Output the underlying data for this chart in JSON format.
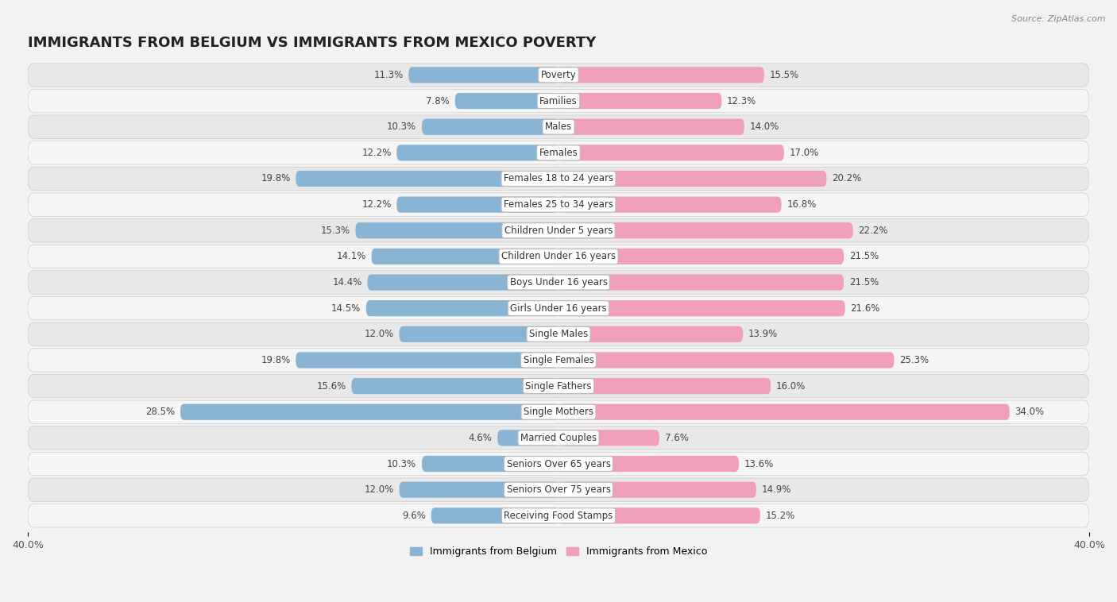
{
  "title": "IMMIGRANTS FROM BELGIUM VS IMMIGRANTS FROM MEXICO POVERTY",
  "source": "Source: ZipAtlas.com",
  "categories": [
    "Poverty",
    "Families",
    "Males",
    "Females",
    "Females 18 to 24 years",
    "Females 25 to 34 years",
    "Children Under 5 years",
    "Children Under 16 years",
    "Boys Under 16 years",
    "Girls Under 16 years",
    "Single Males",
    "Single Females",
    "Single Fathers",
    "Single Mothers",
    "Married Couples",
    "Seniors Over 65 years",
    "Seniors Over 75 years",
    "Receiving Food Stamps"
  ],
  "belgium_values": [
    11.3,
    7.8,
    10.3,
    12.2,
    19.8,
    12.2,
    15.3,
    14.1,
    14.4,
    14.5,
    12.0,
    19.8,
    15.6,
    28.5,
    4.6,
    10.3,
    12.0,
    9.6
  ],
  "mexico_values": [
    15.5,
    12.3,
    14.0,
    17.0,
    20.2,
    16.8,
    22.2,
    21.5,
    21.5,
    21.6,
    13.9,
    25.3,
    16.0,
    34.0,
    7.6,
    13.6,
    14.9,
    15.2
  ],
  "belgium_color": "#8ab4d4",
  "mexico_color": "#f0a0b8",
  "belgium_label": "Immigrants from Belgium",
  "mexico_label": "Immigrants from Mexico",
  "max_val": 40.0,
  "bg_color": "#f2f2f2",
  "row_colors": [
    "#e8e8e8",
    "#f5f5f5"
  ],
  "title_fontsize": 13,
  "label_fontsize": 8.5,
  "value_fontsize": 8.5
}
